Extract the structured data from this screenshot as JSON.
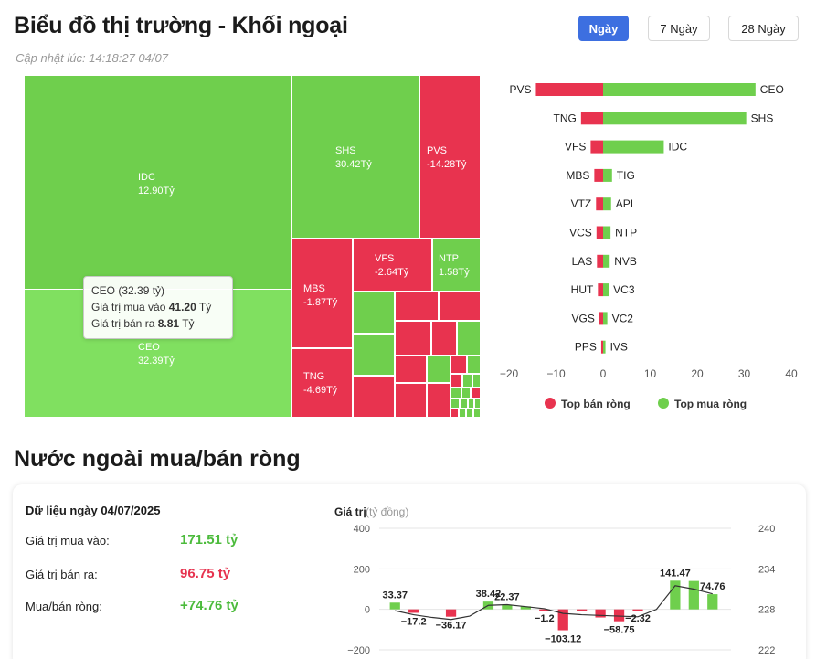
{
  "header": {
    "title": "Biểu đồ thị trường - Khối ngoại",
    "updated": "Cập nhật lúc: 14:18:27 04/07",
    "ranges": [
      "Ngày",
      "7 Ngày",
      "28 Ngày"
    ],
    "active_range": "Ngày"
  },
  "treemap": {
    "tiles": [
      {
        "code": "IDC",
        "value": "12.90Tỷ"
      },
      {
        "code": "CEO",
        "value": "32.39Tỷ"
      },
      {
        "code": "SHS",
        "value": "30.42Tỷ"
      },
      {
        "code": "PVS",
        "value": "-14.28Tỷ"
      },
      {
        "code": "MBS",
        "value": "-1.87Tỷ"
      },
      {
        "code": "VFS",
        "value": "-2.64Tỷ"
      },
      {
        "code": "NTP",
        "value": "1.58Tỷ"
      },
      {
        "code": "TNG",
        "value": "-4.69Tỷ"
      }
    ],
    "tooltip": {
      "title": "CEO (32.39 tỷ)",
      "buy_label": "Giá trị mua vào",
      "buy_value": "41.20",
      "sell_label": "Giá trị bán ra",
      "sell_value": "8.81",
      "unit": "Tỷ"
    }
  },
  "chart_data": [
    {
      "type": "bar",
      "orientation": "horizontal",
      "sell_codes": [
        "PVS",
        "TNG",
        "VFS",
        "MBS",
        "VTZ",
        "VCS",
        "LAS",
        "HUT",
        "VGS",
        "PPS"
      ],
      "sell_values": [
        -14.28,
        -4.69,
        -2.64,
        -1.87,
        -1.5,
        -1.4,
        -1.3,
        -1.1,
        -0.8,
        -0.4
      ],
      "buy_codes": [
        "CEO",
        "SHS",
        "IDC",
        "TIG",
        "API",
        "NTP",
        "NVB",
        "VC3",
        "VC2",
        "IVS"
      ],
      "buy_values": [
        32.39,
        30.42,
        12.9,
        1.9,
        1.7,
        1.58,
        1.4,
        1.2,
        0.9,
        0.5
      ],
      "x_ticks": [
        "−20",
        "−10",
        "0",
        "10",
        "20",
        "30",
        "40"
      ],
      "xlim": [
        -20,
        40
      ],
      "grid": false,
      "legend": [
        {
          "name": "Top bán ròng",
          "color": "#e8334f"
        },
        {
          "name": "Top mua ròng",
          "color": "#6fcf4d"
        }
      ],
      "legend_position": "bottom"
    },
    {
      "type": "bar",
      "title": "Giá trị",
      "title_unit": "(tỷ đồng)",
      "ylim": [
        -200,
        400
      ],
      "y_ticks": [
        "400",
        "200",
        "0",
        "−200"
      ],
      "y2lim": [
        222,
        240
      ],
      "y2_ticks": [
        "240",
        "234",
        "228",
        "222"
      ],
      "series": [
        {
          "type": "bar",
          "values": [
            33.37,
            -17.2,
            0,
            -36.17,
            0,
            38.42,
            22.37,
            15,
            -1.2,
            -103.12,
            -5,
            -40,
            -58.75,
            -2.32,
            0,
            141.47,
            140,
            74.76
          ]
        },
        {
          "type": "line",
          "values": [
            227.8,
            227.2,
            226.8,
            226.5,
            227.0,
            228.6,
            228.7,
            228.4,
            228.1,
            227.4,
            227.2,
            227.1,
            227.0,
            226.9,
            228.0,
            231.5,
            231.0,
            230.3
          ]
        }
      ],
      "data_labels": [
        {
          "index": 0,
          "text": "33.37"
        },
        {
          "index": 1,
          "text": "−17.2"
        },
        {
          "index": 3,
          "text": "−36.17"
        },
        {
          "index": 5,
          "text": "38.42"
        },
        {
          "index": 6,
          "text": "22.37"
        },
        {
          "index": 8,
          "text": "−1.2"
        },
        {
          "index": 9,
          "text": "−103.12"
        },
        {
          "index": 12,
          "text": "−58.75"
        },
        {
          "index": 13,
          "text": "−2.32"
        },
        {
          "index": 15,
          "text": "141.47"
        },
        {
          "index": 17,
          "text": "74.76"
        }
      ],
      "bar_color_pos": "#6fcf4d",
      "bar_color_neg": "#e8334f"
    }
  ],
  "net_section": {
    "title": "Nước ngoài mua/bán ròng",
    "date_label": "Dữ liệu ngày 04/07/2025",
    "rows": [
      {
        "label": "Giá trị mua vào:",
        "value": "171.51 tỷ",
        "color": "green"
      },
      {
        "label": "Giá trị bán ra:",
        "value": "96.75 tỷ",
        "color": "red"
      },
      {
        "label": "Mua/bán ròng:",
        "value": "+74.76 tỷ",
        "color": "green"
      }
    ]
  }
}
